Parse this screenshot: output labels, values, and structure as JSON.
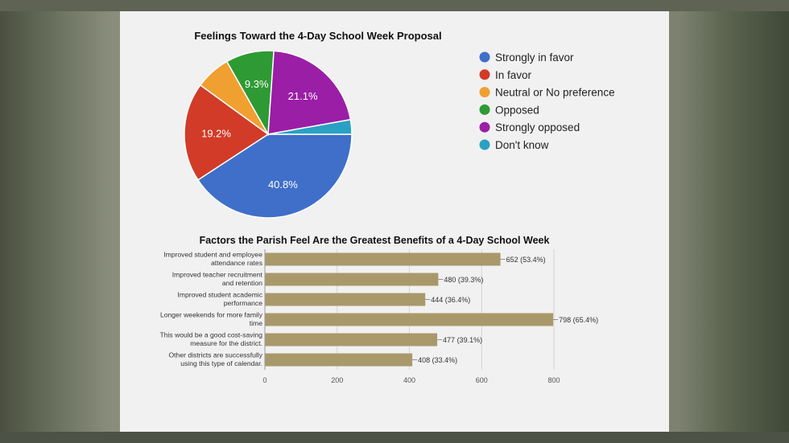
{
  "colors": {
    "blue": "#3f6fc9",
    "red": "#d23b27",
    "orange": "#f0a030",
    "green": "#2e9a34",
    "purple": "#9a1ea6",
    "teal": "#2aa1c2",
    "bar": "#a9996a"
  },
  "chart_data": [
    {
      "type": "pie",
      "title": "Feelings Toward the 4-Day School Week Proposal",
      "labels": [
        "Strongly in favor",
        "In favor",
        "Neutral or No preference",
        "Opposed",
        "Strongly opposed",
        "Don't know"
      ],
      "values": [
        40.8,
        19.2,
        6.8,
        9.3,
        21.1,
        2.8
      ],
      "slice_labels": [
        "40.8%",
        "19.2%",
        "",
        "9.3%",
        "21.1%",
        ""
      ],
      "legend_position": "right"
    },
    {
      "type": "bar",
      "orientation": "horizontal",
      "title": "Factors the Parish Feel Are the Greatest Benefits of a 4-Day School Week",
      "categories": [
        [
          "Improved student and employee",
          "attendance rates"
        ],
        [
          "Improved teacher recruitment",
          "and retention"
        ],
        [
          "Improved student academic",
          "performance"
        ],
        [
          "Longer weekends for more family",
          "time"
        ],
        [
          "This would be a good cost-saving",
          "measure for the district."
        ],
        [
          "Other districts are successfully",
          "using this type of calendar."
        ]
      ],
      "values": [
        652,
        480,
        444,
        798,
        477,
        408
      ],
      "data_labels": [
        "652 (53.4%)",
        "480 (39.3%)",
        "444 (36.4%)",
        "798 (65.4%)",
        "477 (39.1%)",
        "408 (33.4%)"
      ],
      "xlim": [
        0,
        800
      ],
      "xticks": [
        "0",
        "200",
        "400",
        "600",
        "800"
      ],
      "grid": true
    }
  ]
}
